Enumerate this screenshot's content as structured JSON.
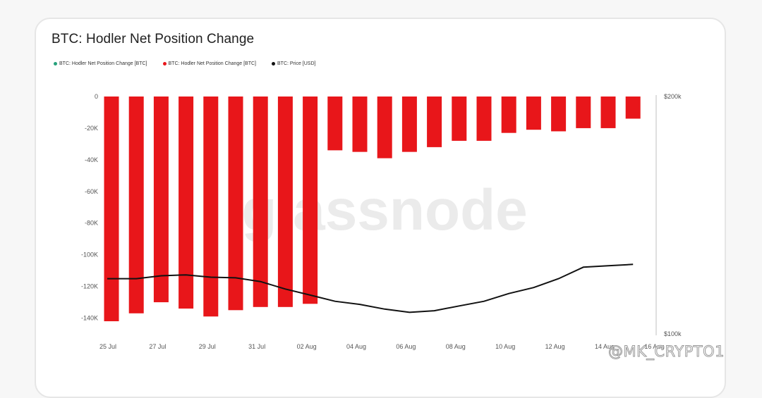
{
  "chart_data": {
    "type": "bar",
    "title": "BTC: Hodler Net Position Change",
    "legend": [
      {
        "name": "BTC: Hodler Net Position Change [BTC]",
        "color": "#26a17b"
      },
      {
        "name": "BTC: Hodler Net Position Change [BTC]",
        "color": "#e8161a"
      },
      {
        "name": "BTC: Price [USD]",
        "color": "#111111"
      }
    ],
    "y_left": {
      "min": -150000,
      "max": 0,
      "ticks": [
        0,
        -20000,
        -40000,
        -60000,
        -80000,
        -100000,
        -120000,
        -140000
      ],
      "tick_labels": [
        "0",
        "-20K",
        "-40K",
        "-60K",
        "-80K",
        "-100K",
        "-120K",
        "-140K"
      ]
    },
    "y_right": {
      "scale": "log",
      "tick_labels": [
        "$200k",
        "$100k"
      ],
      "ticks": [
        200000,
        100000
      ]
    },
    "x_labels": [
      "25 Jul",
      "27 Jul",
      "29 Jul",
      "31 Jul",
      "02 Aug",
      "04 Aug",
      "06 Aug",
      "08 Aug",
      "10 Aug",
      "12 Aug",
      "14 Aug",
      "16 Aug"
    ],
    "categories": [
      "25 Jul",
      "26 Jul",
      "27 Jul",
      "28 Jul",
      "29 Jul",
      "30 Jul",
      "31 Jul",
      "01 Aug",
      "02 Aug",
      "03 Aug",
      "04 Aug",
      "05 Aug",
      "06 Aug",
      "07 Aug",
      "08 Aug",
      "09 Aug",
      "10 Aug",
      "11 Aug",
      "12 Aug",
      "13 Aug",
      "14 Aug",
      "15 Aug"
    ],
    "series": [
      {
        "name": "BTC: Hodler Net Position Change [BTC]",
        "color": "#e8161a",
        "values": [
          -142000,
          -137000,
          -130000,
          -134000,
          -139000,
          -135000,
          -133000,
          -133000,
          -131000,
          -34000,
          -35000,
          -39000,
          -35000,
          -32000,
          -28000,
          -28000,
          -23000,
          -21000,
          -22000,
          -20000,
          -20000,
          -14000
        ]
      },
      {
        "name": "BTC: Price [USD]",
        "color": "#111111",
        "axis": "right",
        "values": [
          117500,
          117500,
          118500,
          118800,
          118000,
          117800,
          116500,
          114000,
          112000,
          110000,
          109000,
          107500,
          106500,
          107000,
          108500,
          110000,
          112500,
          114500,
          117500,
          121500,
          122000,
          122500
        ]
      }
    ],
    "grid": false,
    "legend_position": "top-left",
    "watermark": "glassnode"
  },
  "overlay": {
    "bottom_watermark": "@MK_CRYPTO1"
  }
}
